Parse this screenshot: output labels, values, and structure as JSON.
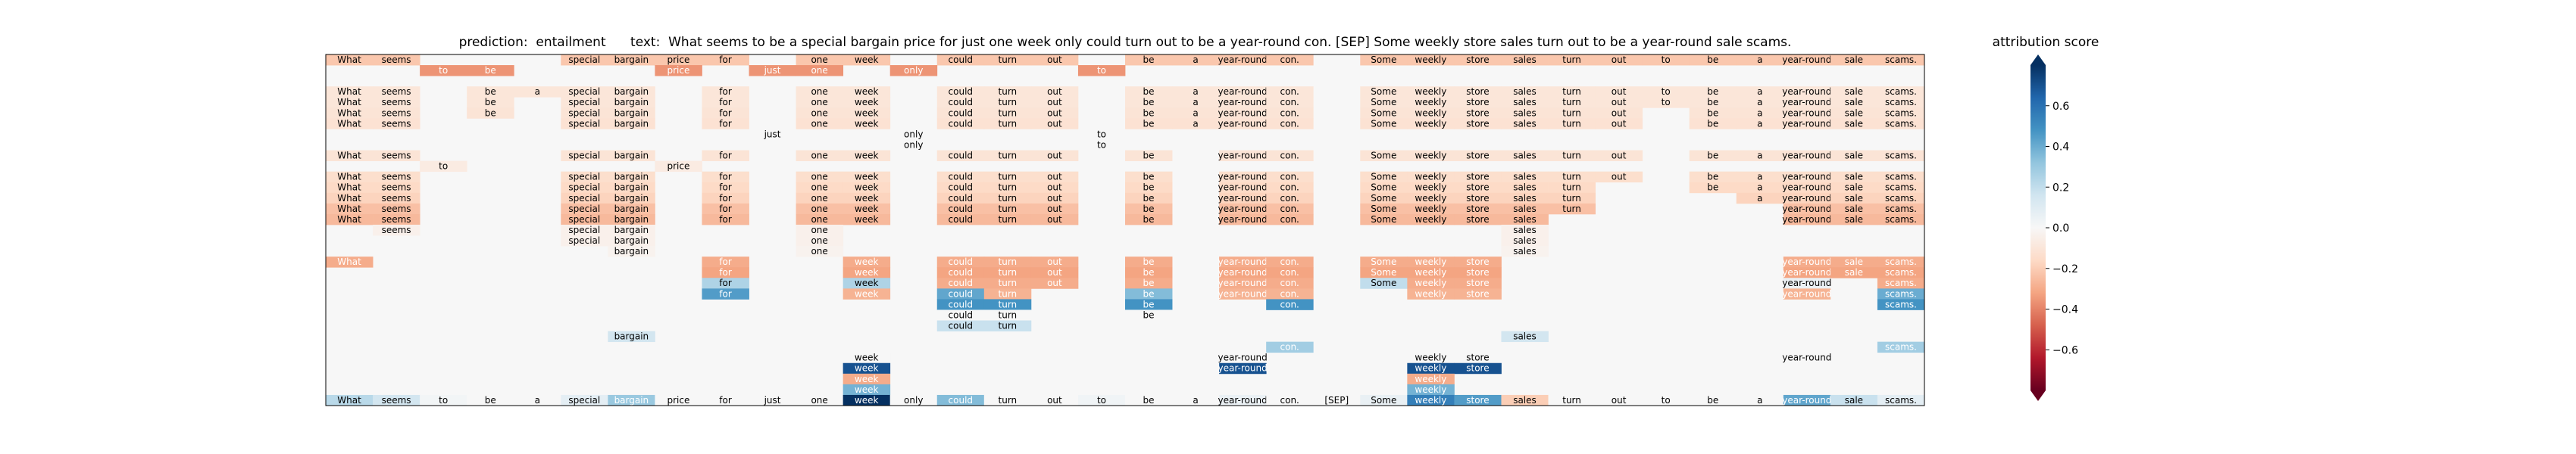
{
  "chart_data": {
    "type": "heatmap",
    "title": "prediction:  entailment      text:  What seems to be a special bargain price for just one week only could turn out to be a year-round con. [SEP] Some weekly store sales turn out to be a year-round sale scams.",
    "tokens": [
      "What",
      "seems",
      "to",
      "be",
      "a",
      "special",
      "bargain",
      "price",
      "for",
      "just",
      "one",
      "week",
      "only",
      "could",
      "turn",
      "out",
      "to",
      "be",
      "a",
      "year-round",
      "con.",
      "[SEP]",
      "Some",
      "weekly",
      "store",
      "sales",
      "turn",
      "out",
      "to",
      "be",
      "a",
      "year-round",
      "sale",
      "scams."
    ],
    "rows": [
      {
        "c": [
          0,
          1,
          5,
          6,
          7,
          8,
          10,
          11,
          13,
          14,
          15,
          17,
          18,
          19,
          20,
          22,
          23,
          24,
          25,
          26,
          27,
          28,
          29,
          30,
          31,
          32,
          33
        ],
        "v": -0.22
      },
      {
        "c": [
          2,
          3,
          7,
          9,
          10,
          12,
          16
        ],
        "v": -0.36
      },
      {
        "c": [],
        "v": 0
      },
      {
        "c": [
          0,
          1,
          3,
          4,
          5,
          6,
          8,
          10,
          11,
          13,
          14,
          15,
          17,
          18,
          19,
          20,
          22,
          23,
          24,
          25,
          26,
          27,
          28,
          29,
          30,
          31,
          32,
          33
        ],
        "v": -0.1
      },
      {
        "c": [
          0,
          1,
          3,
          5,
          6,
          8,
          10,
          11,
          13,
          14,
          15,
          17,
          18,
          19,
          20,
          22,
          23,
          24,
          25,
          26,
          27,
          28,
          29,
          30,
          31,
          32,
          33
        ],
        "v": -0.1
      },
      {
        "c": [
          0,
          1,
          3,
          5,
          6,
          8,
          10,
          11,
          13,
          14,
          15,
          17,
          18,
          19,
          20,
          22,
          23,
          24,
          25,
          26,
          27,
          29,
          30,
          31,
          32,
          33
        ],
        "v": -0.11
      },
      {
        "c": [
          0,
          1,
          5,
          6,
          8,
          10,
          11,
          13,
          14,
          15,
          17,
          18,
          19,
          20,
          22,
          23,
          24,
          25,
          26,
          27,
          29,
          30,
          31,
          32,
          33
        ],
        "v": -0.12
      },
      {
        "c": [
          9,
          12,
          16
        ],
        "v": 0
      },
      {
        "c": [
          12,
          16
        ],
        "v": 0
      },
      {
        "c": [
          0,
          1,
          5,
          6,
          8,
          10,
          11,
          13,
          14,
          15,
          17,
          19,
          20,
          22,
          23,
          24,
          25,
          26,
          27,
          29,
          30,
          31,
          32,
          33
        ],
        "v": -0.11
      },
      {
        "c": [
          2,
          7
        ],
        "v": -0.07
      },
      {
        "c": [
          0,
          1,
          5,
          6,
          8,
          10,
          11,
          13,
          14,
          15,
          17,
          19,
          20,
          22,
          23,
          24,
          25,
          26,
          27,
          29,
          30,
          31,
          32,
          33
        ],
        "v": -0.14
      },
      {
        "c": [
          0,
          1,
          5,
          6,
          8,
          10,
          11,
          13,
          14,
          15,
          17,
          19,
          20,
          22,
          23,
          24,
          25,
          26,
          29,
          30,
          31,
          32,
          33
        ],
        "v": -0.16
      },
      {
        "c": [
          0,
          1,
          5,
          6,
          8,
          10,
          11,
          13,
          14,
          15,
          17,
          19,
          20,
          22,
          23,
          24,
          25,
          26,
          30,
          31,
          32,
          33
        ],
        "v": -0.18
      },
      {
        "c": [
          0,
          1,
          5,
          6,
          8,
          10,
          11,
          13,
          14,
          15,
          17,
          19,
          20,
          22,
          23,
          24,
          25,
          26,
          31,
          32,
          33
        ],
        "v": -0.24
      },
      {
        "c": [
          0,
          1,
          5,
          6,
          8,
          10,
          11,
          13,
          14,
          15,
          17,
          19,
          20,
          22,
          23,
          24,
          25,
          31,
          32,
          33
        ],
        "v": -0.26
      },
      {
        "c": [
          1,
          5,
          6,
          10,
          25
        ],
        "v": -0.04
      },
      {
        "c": [
          5,
          6,
          10,
          25
        ],
        "v": -0.04
      },
      {
        "c": [
          6,
          10,
          25
        ],
        "v": -0.03
      },
      {
        "c": [
          0,
          8,
          11,
          13,
          14,
          15,
          17,
          19,
          20,
          22,
          23,
          24,
          31,
          32,
          33
        ],
        "v": -0.3
      },
      {
        "c": [
          8,
          11,
          13,
          14,
          15,
          17,
          19,
          20,
          22,
          23,
          24,
          31,
          32,
          33
        ],
        "v": -0.32
      },
      {
        "c": [
          8,
          11,
          13,
          14,
          15,
          17,
          19,
          20,
          22,
          23,
          24,
          31,
          33
        ],
        "v": -0.3,
        "o": {
          "8": 0.25,
          "11": 0.25,
          "22": 0.2,
          "31": 0.05
        }
      },
      {
        "c": [
          8,
          11,
          13,
          14,
          17,
          19,
          20,
          23,
          24,
          31,
          33
        ],
        "v": -0.28,
        "o": {
          "8": 0.45,
          "13": 0.42,
          "17": 0.35,
          "33": 0.4
        }
      },
      {
        "c": [
          13,
          14,
          17,
          20,
          33
        ],
        "v": 0.48
      },
      {
        "c": [
          13,
          14,
          17
        ],
        "v": 0
      },
      {
        "c": [
          13,
          14
        ],
        "v": 0.18
      },
      {
        "c": [
          6,
          25
        ],
        "v": 0.15
      },
      {
        "c": [
          20,
          33
        ],
        "v": 0.28
      },
      {
        "c": [
          11,
          19,
          23,
          24,
          31
        ],
        "v": 0
      },
      {
        "c": [
          11,
          19,
          23,
          24
        ],
        "v": 0.7
      },
      {
        "c": [
          11,
          23
        ],
        "v": -0.3
      },
      {
        "c": [
          11,
          23
        ],
        "v": 0.38
      },
      {
        "c": [
          0,
          1,
          2,
          3,
          4,
          5,
          6,
          7,
          8,
          9,
          10,
          11,
          12,
          13,
          14,
          15,
          16,
          17,
          18,
          19,
          20,
          21,
          22,
          23,
          24,
          25,
          26,
          27,
          28,
          29,
          30,
          31,
          32,
          33
        ],
        "v": 0,
        "o": {
          "0": 0.22,
          "1": 0.15,
          "2": 0.02,
          "5": 0.08,
          "6": 0.3,
          "11": 0.85,
          "13": 0.35,
          "16": 0.03,
          "19": 0.05,
          "22": 0.06,
          "23": 0.55,
          "24": 0.45,
          "25": -0.2,
          "31": 0.42,
          "32": 0.18,
          "33": 0.08
        }
      }
    ],
    "colorbar": {
      "label": "attribution score",
      "ticks": [
        "0.6",
        "0.4",
        "0.2",
        "0.0",
        "−0.2",
        "−0.4",
        "−0.6"
      ],
      "range": [
        -0.8,
        0.8
      ],
      "colormap": "RdBu"
    },
    "grid": false
  }
}
